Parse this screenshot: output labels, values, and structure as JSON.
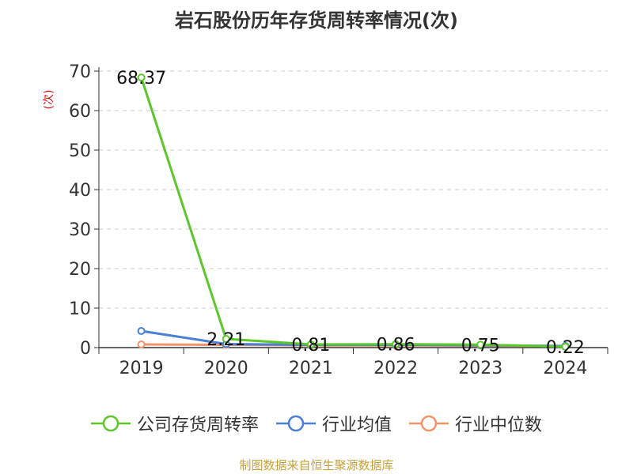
{
  "chart_data": {
    "type": "line",
    "title": "岩石股份历年存货周转率情况(次)",
    "ylabel": "(次)",
    "xlabel": "",
    "categories": [
      "2019",
      "2020",
      "2021",
      "2022",
      "2023",
      "2024"
    ],
    "ylim": [
      0,
      70
    ],
    "yticks": [
      0,
      10,
      20,
      30,
      40,
      50,
      60,
      70
    ],
    "grid": true,
    "legend_position": "bottom",
    "series": [
      {
        "name": "公司存货周转率",
        "values": [
          68.37,
          2.21,
          0.81,
          0.86,
          0.75,
          0.22
        ],
        "color": "#5cc72a",
        "labels": [
          "68.37",
          "2.21",
          "0.81",
          "0.86",
          "0.75",
          "0.22"
        ]
      },
      {
        "name": "行业均值",
        "values": [
          4.2,
          0.9,
          0.7,
          0.7,
          0.6,
          0.4
        ],
        "color": "#4a7fd6",
        "labels": []
      },
      {
        "name": "行业中位数",
        "values": [
          0.8,
          0.7,
          0.55,
          0.55,
          0.5,
          0.35
        ],
        "color": "#f4936a",
        "labels": []
      }
    ]
  },
  "source": "制图数据来自恒生聚源数据库"
}
